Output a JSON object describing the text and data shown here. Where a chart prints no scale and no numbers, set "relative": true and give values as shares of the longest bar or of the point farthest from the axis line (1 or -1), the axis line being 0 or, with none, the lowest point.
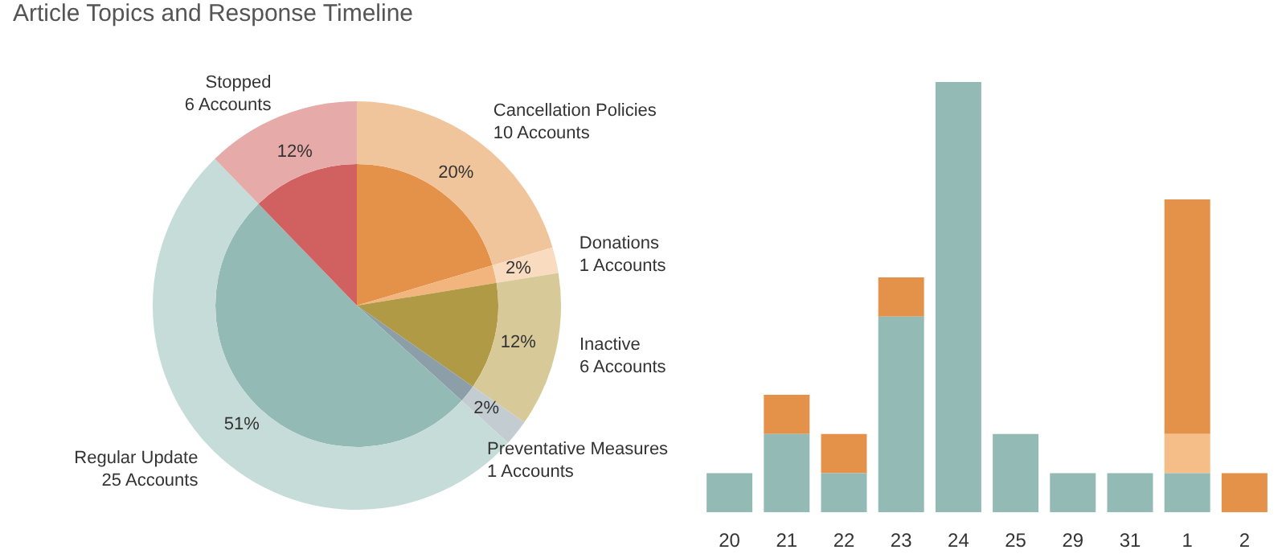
{
  "chart_data": [
    {
      "type": "donut",
      "title": "Article Topics and Response Timeline",
      "categories": [
        "Cancellation Policies",
        "Donations",
        "Inactive",
        "Preventative Measures",
        "Regular Update",
        "Stopped"
      ],
      "series": [
        {
          "colors": [
            "#f1c59b",
            "#f9dcc0",
            "#d8ca98",
            "#c3ccd1",
            "#c6dcd8",
            "#e6aaa9"
          ],
          "values": [
            20.4,
            2.04,
            12.24,
            2.04,
            51.02,
            12.24
          ]
        },
        {
          "colors": [
            "#e4924a",
            "#f3b57e",
            "#b09a45",
            "#8c9fa8",
            "#93bab5",
            "#d16060"
          ],
          "values": [
            20.4,
            2.04,
            12.24,
            2.04,
            51.02,
            12.24
          ]
        }
      ],
      "value_labels": [
        "20%",
        "2%",
        "12%",
        "2%",
        "51%",
        "12%"
      ],
      "annotations": [
        "10 Accounts",
        "1 Accounts",
        "6 Accounts",
        "1 Accounts",
        "25 Accounts",
        "6 Accounts"
      ]
    },
    {
      "type": "bar",
      "stacked": true,
      "relative": true,
      "categories": [
        "20",
        "21",
        "22",
        "23",
        "24",
        "25",
        "29",
        "31",
        "1",
        "2"
      ],
      "series": [
        {
          "color": "#93bab5",
          "values": [
            0.091,
            0.182,
            0.091,
            0.455,
            1,
            0.182,
            0.091,
            0.091,
            0.091,
            null
          ]
        },
        {
          "color": "#f5bd88",
          "values": [
            null,
            null,
            null,
            null,
            null,
            null,
            null,
            null,
            0.091,
            null
          ]
        },
        {
          "color": "#e4924a",
          "values": [
            null,
            0.091,
            0.091,
            0.091,
            null,
            null,
            null,
            null,
            0.545,
            0.091
          ]
        }
      ]
    }
  ]
}
